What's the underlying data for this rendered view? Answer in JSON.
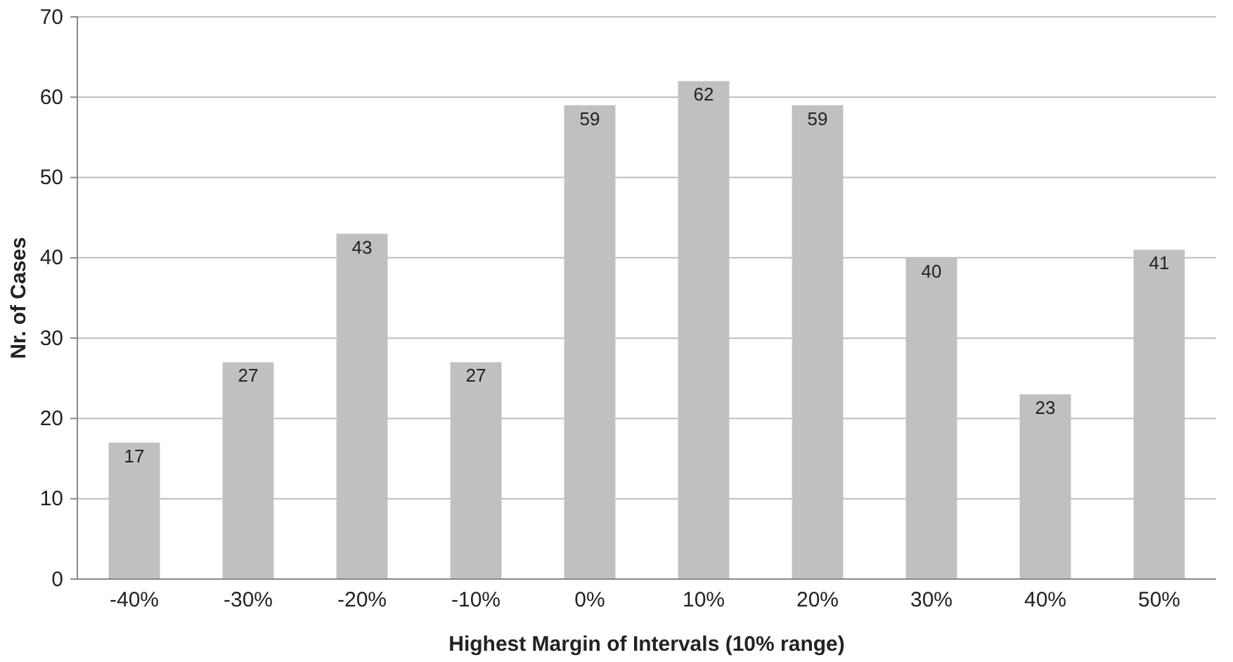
{
  "chart_data": {
    "type": "bar",
    "xlabel": "Highest Margin of Intervals (10% range)",
    "ylabel": "Nr. of Cases",
    "categories": [
      "-40%",
      "-30%",
      "-20%",
      "-10%",
      "0%",
      "10%",
      "20%",
      "30%",
      "40%",
      "50%"
    ],
    "values": [
      17,
      27,
      43,
      27,
      59,
      62,
      59,
      40,
      23,
      41
    ],
    "color": "#c0c0c0",
    "data_labels": true,
    "grid": "y",
    "ylim": [
      0,
      70
    ],
    "yticks": [
      0,
      10,
      20,
      30,
      40,
      50,
      60,
      70
    ]
  }
}
